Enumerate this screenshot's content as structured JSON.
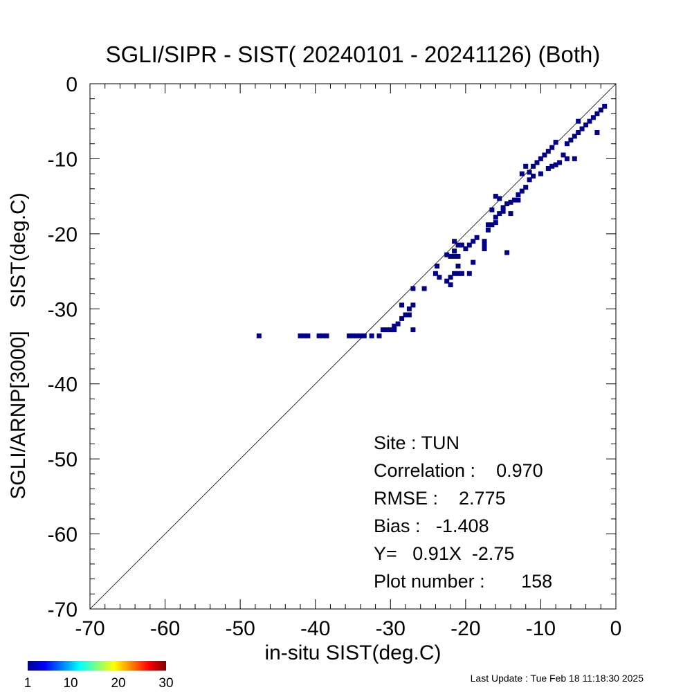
{
  "chart_data": {
    "type": "heatmap",
    "title": "SGLI/SIPR - SIST( 20240101 - 20241126) (Both)",
    "xlabel": "in-situ SIST(deg.C)",
    "ylabel": "SGLI/ARNP[3000]    SIST(deg.C)",
    "xlim": [
      -70,
      0
    ],
    "ylim": [
      -70,
      0
    ],
    "xticks": [
      "-70",
      "-60",
      "-50",
      "-40",
      "-30",
      "-20",
      "-10",
      "0"
    ],
    "yticks": [
      "-70",
      "-60",
      "-50",
      "-40",
      "-30",
      "-20",
      "-10",
      "0"
    ],
    "one_to_one_line": true,
    "cell_color": "#00008b",
    "points": [
      [
        -47.5,
        -33.6
      ],
      [
        -42.0,
        -33.6
      ],
      [
        -41.5,
        -33.6
      ],
      [
        -41.0,
        -33.6
      ],
      [
        -39.5,
        -33.6
      ],
      [
        -39.0,
        -33.6
      ],
      [
        -38.5,
        -33.6
      ],
      [
        -35.5,
        -33.6
      ],
      [
        -35.0,
        -33.6
      ],
      [
        -34.5,
        -33.6
      ],
      [
        -34.0,
        -33.6
      ],
      [
        -33.5,
        -33.6
      ],
      [
        -32.5,
        -33.6
      ],
      [
        -31.5,
        -33.6
      ],
      [
        -31.0,
        -32.8
      ],
      [
        -30.5,
        -32.8
      ],
      [
        -30.0,
        -32.8
      ],
      [
        -29.5,
        -32.8
      ],
      [
        -29.5,
        -32.3
      ],
      [
        -29.0,
        -32.0
      ],
      [
        -28.5,
        -31.3
      ],
      [
        -28.0,
        -30.8
      ],
      [
        -27.5,
        -30.8
      ],
      [
        -27.5,
        -30.0
      ],
      [
        -28.5,
        -29.5
      ],
      [
        -27.0,
        -29.5
      ],
      [
        -27.0,
        -32.8
      ],
      [
        -27.0,
        -27.3
      ],
      [
        -25.5,
        -27.3
      ],
      [
        -23.8,
        -24.3
      ],
      [
        -24.0,
        -25.3
      ],
      [
        -23.5,
        -25.8
      ],
      [
        -22.5,
        -26.3
      ],
      [
        -22.0,
        -26.8
      ],
      [
        -22.0,
        -25.8
      ],
      [
        -21.5,
        -25.3
      ],
      [
        -21.0,
        -25.3
      ],
      [
        -20.5,
        -25.3
      ],
      [
        -19.5,
        -25.3
      ],
      [
        -21.0,
        -24.3
      ],
      [
        -22.0,
        -23.0
      ],
      [
        -21.5,
        -23.0
      ],
      [
        -21.0,
        -23.0
      ],
      [
        -22.5,
        -22.8
      ],
      [
        -21.5,
        -22.3
      ],
      [
        -21.0,
        -21.5
      ],
      [
        -21.5,
        -21.0
      ],
      [
        -20.5,
        -21.5
      ],
      [
        -20.0,
        -22.0
      ],
      [
        -19.5,
        -21.5
      ],
      [
        -19.0,
        -21.0
      ],
      [
        -18.5,
        -20.5
      ],
      [
        -19.0,
        -23.8
      ],
      [
        -17.5,
        -22.0
      ],
      [
        -17.5,
        -21.5
      ],
      [
        -17.5,
        -21.0
      ],
      [
        -14.5,
        -22.5
      ],
      [
        -17.0,
        -19.5
      ],
      [
        -17.0,
        -18.8
      ],
      [
        -16.5,
        -18.8
      ],
      [
        -16.0,
        -18.5
      ],
      [
        -16.0,
        -17.8
      ],
      [
        -15.5,
        -17.3
      ],
      [
        -15.0,
        -17.0
      ],
      [
        -15.0,
        -16.5
      ],
      [
        -14.5,
        -16.0
      ],
      [
        -14.0,
        -15.8
      ],
      [
        -13.5,
        -15.5
      ],
      [
        -13.0,
        -14.8
      ],
      [
        -12.5,
        -14.3
      ],
      [
        -13.0,
        -15.5
      ],
      [
        -14.0,
        -17.3
      ],
      [
        -16.0,
        -15.0
      ],
      [
        -15.5,
        -15.3
      ],
      [
        -16.5,
        -16.8
      ],
      [
        -12.0,
        -13.8
      ],
      [
        -11.5,
        -12.8
      ],
      [
        -11.0,
        -12.3
      ],
      [
        -11.5,
        -11.8
      ],
      [
        -11.0,
        -11.0
      ],
      [
        -10.5,
        -10.5
      ],
      [
        -10.0,
        -10.0
      ],
      [
        -9.5,
        -9.5
      ],
      [
        -9.0,
        -9.0
      ],
      [
        -8.5,
        -8.5
      ],
      [
        -8.0,
        -7.8
      ],
      [
        -9.0,
        -11.3
      ],
      [
        -8.5,
        -11.0
      ],
      [
        -8.0,
        -10.8
      ],
      [
        -7.5,
        -10.5
      ],
      [
        -7.0,
        -9.5
      ],
      [
        -6.5,
        -8.0
      ],
      [
        -6.0,
        -7.5
      ],
      [
        -5.5,
        -7.0
      ],
      [
        -5.0,
        -6.5
      ],
      [
        -4.5,
        -6.0
      ],
      [
        -4.0,
        -5.5
      ],
      [
        -3.5,
        -5.0
      ],
      [
        -5.0,
        -5.0
      ],
      [
        -3.0,
        -4.5
      ],
      [
        -2.5,
        -4.0
      ],
      [
        -2.0,
        -3.5
      ],
      [
        -1.5,
        -3.0
      ],
      [
        -2.5,
        -6.5
      ],
      [
        -6.5,
        -10.0
      ],
      [
        -5.5,
        -10.0
      ],
      [
        -12.0,
        -11.0
      ],
      [
        -12.5,
        -12.0
      ],
      [
        -10.0,
        -12.0
      ]
    ],
    "colorbar": {
      "ticks": [
        "1",
        "10",
        "20",
        "30"
      ],
      "min": 1,
      "max": 30
    },
    "annotations": [
      {
        "key": "site",
        "text": "Site : TUN"
      },
      {
        "key": "correlation",
        "text": "Correlation :    0.970"
      },
      {
        "key": "rmse",
        "text": "RMSE :    2.775"
      },
      {
        "key": "bias",
        "text": "Bias :   -1.408"
      },
      {
        "key": "fit",
        "text": "Y=   0.91X  -2.75"
      },
      {
        "key": "plot_number",
        "text": "Plot number :       158"
      }
    ],
    "footer": "Last Update : Tue Feb 18 11:18:30 2025"
  }
}
